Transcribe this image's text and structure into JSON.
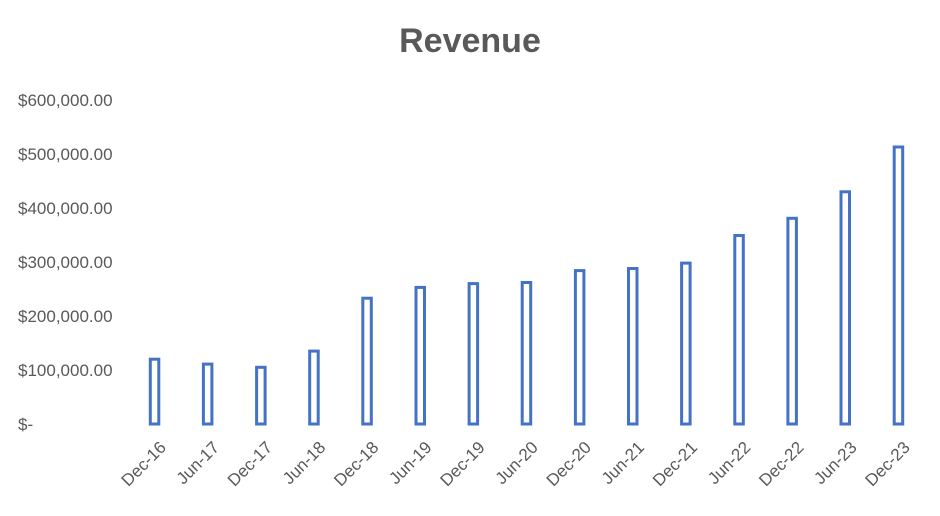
{
  "chart_data": {
    "type": "bar",
    "title": "Revenue",
    "xlabel": "",
    "ylabel": "",
    "ylim": [
      0,
      600000
    ],
    "y_ticks": [
      {
        "value": 0,
        "label": "$-"
      },
      {
        "value": 100000,
        "label": "$100,000.00"
      },
      {
        "value": 200000,
        "label": "$200,000.00"
      },
      {
        "value": 300000,
        "label": "$300,000.00"
      },
      {
        "value": 400000,
        "label": "$400,000.00"
      },
      {
        "value": 500000,
        "label": "$500,000.00"
      },
      {
        "value": 600000,
        "label": "$600,000.00"
      }
    ],
    "categories": [
      "Dec-16",
      "Jun-17",
      "Dec-17",
      "Jun-18",
      "Dec-18",
      "Jun-19",
      "Dec-19",
      "Jun-20",
      "Dec-20",
      "Jun-21",
      "Dec-21",
      "Jun-22",
      "Dec-22",
      "Jun-23",
      "Dec-23"
    ],
    "values": [
      120000,
      111000,
      105000,
      135000,
      233000,
      253000,
      260000,
      262000,
      284000,
      288000,
      298000,
      349000,
      381000,
      430000,
      513000
    ],
    "grid": false,
    "legend": "none",
    "bar_style": "outline",
    "bar_color": "#4472C4"
  }
}
